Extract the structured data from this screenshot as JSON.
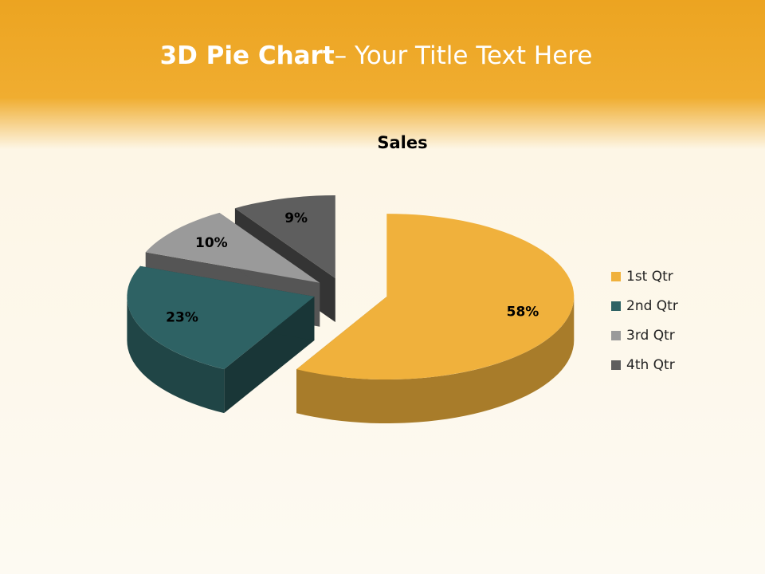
{
  "header": {
    "title_bold": "3D Pie Chart",
    "title_rest": "– Your Title Text Here"
  },
  "chart_data": {
    "type": "pie3d",
    "title": "Sales",
    "categories": [
      "1st Qtr",
      "2nd Qtr",
      "3rd Qtr",
      "4th Qtr"
    ],
    "values": [
      58,
      23,
      10,
      9
    ],
    "value_labels": [
      "58%",
      "23%",
      "10%",
      "9%"
    ],
    "colors": [
      "#f0b13c",
      "#2e6264",
      "#9a9a9a",
      "#5e5e5e"
    ],
    "legend": "right"
  }
}
